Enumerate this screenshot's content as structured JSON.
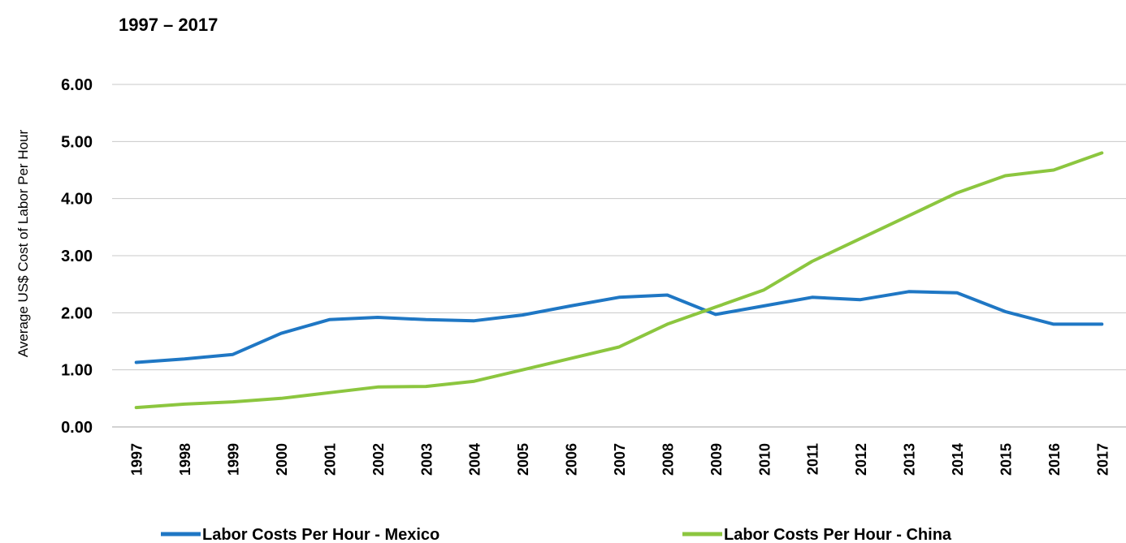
{
  "chart_data": {
    "type": "line",
    "title": "1997 – 2017",
    "xlabel": "",
    "ylabel": "Average US$ Cost of Labor Per Hour",
    "ylim": [
      0,
      6
    ],
    "yticks": [
      "0.00",
      "1.00",
      "2.00",
      "3.00",
      "4.00",
      "5.00",
      "6.00"
    ],
    "grid": true,
    "legend_position": "bottom",
    "categories": [
      "1997",
      "1998",
      "1999",
      "2000",
      "2001",
      "2002",
      "2003",
      "2004",
      "2005",
      "2006",
      "2007",
      "2008",
      "2009",
      "2010",
      "2011",
      "2012",
      "2013",
      "2014",
      "2015",
      "2016",
      "2017"
    ],
    "series": [
      {
        "name": "Labor Costs Per Hour - Mexico",
        "color": "#1f77c4",
        "values": [
          1.13,
          1.19,
          1.27,
          1.64,
          1.88,
          1.92,
          1.88,
          1.86,
          1.96,
          2.12,
          2.27,
          2.31,
          1.97,
          2.12,
          2.27,
          2.23,
          2.37,
          2.35,
          2.02,
          1.8,
          1.8
        ]
      },
      {
        "name": "Labor Costs Per Hour - China",
        "color": "#8cc63f",
        "values": [
          0.34,
          0.4,
          0.44,
          0.5,
          0.6,
          0.7,
          0.71,
          0.8,
          1.0,
          1.2,
          1.4,
          1.8,
          2.1,
          2.4,
          2.9,
          3.3,
          3.7,
          4.1,
          4.4,
          4.5,
          4.8
        ]
      }
    ]
  }
}
